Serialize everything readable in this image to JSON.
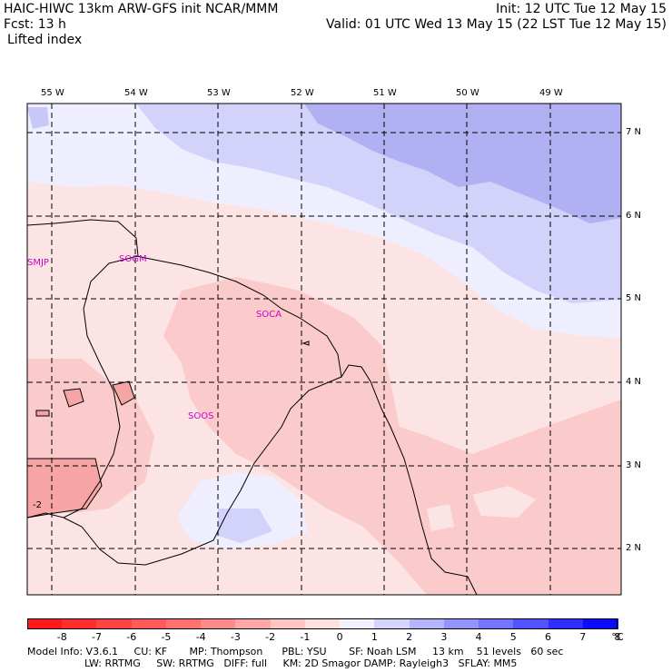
{
  "header": {
    "line1_left": "HAIC-HIWC 13km ARW-GFS init   NCAR/MMM",
    "line1_right": "Init: 12 UTC Tue 12 May 15",
    "line2_left": "Fcst:    13 h",
    "line2_right": "Valid: 01 UTC Wed 13 May 15 (22 LST Tue 12 May 15)",
    "field_name": "Lifted index"
  },
  "map": {
    "lon_labels": [
      "55 W",
      "54 W",
      "53 W",
      "52 W",
      "51 W",
      "50 W",
      "49 W"
    ],
    "lat_labels": [
      "7 N",
      "6 N",
      "5 N",
      "4 N",
      "3 N",
      "2 N"
    ],
    "stations": [
      "SMJP",
      "SOGM",
      "SOCA",
      "SOOS"
    ],
    "contour_label": "-2",
    "colors": {
      "boundary": "#000000",
      "station_text": "#cc00cc"
    }
  },
  "colorbar": {
    "ticks": [
      "-8",
      "-7",
      "-6",
      "-5",
      "-4",
      "-3",
      "-2",
      "-1",
      "0",
      "1",
      "2",
      "3",
      "4",
      "5",
      "6",
      "7",
      "8"
    ],
    "unit": "°C",
    "colors": [
      "#ff1a1a",
      "#ff2e2e",
      "#ff4444",
      "#ff5a5a",
      "#ff7070",
      "#ff8a8a",
      "#ffa6a6",
      "#ffc4c4",
      "#ffe0e0",
      "#f2f2ff",
      "#d4d4ff",
      "#b4b4ff",
      "#9494ff",
      "#7474ff",
      "#5252ff",
      "#2e2eff",
      "#0a0aff"
    ]
  },
  "footer": {
    "line1": "Model Info: V3.6.1     CU: KF       MP: Thompson      PBL: YSU       SF: Noah LSM     13 km    51 levels   60 sec",
    "line2": "                  LW: RRTMG     SW: RRTMG   DIFF: full     KM: 2D Smagor DAMP: Rayleigh3   SFLAY: MM5"
  }
}
